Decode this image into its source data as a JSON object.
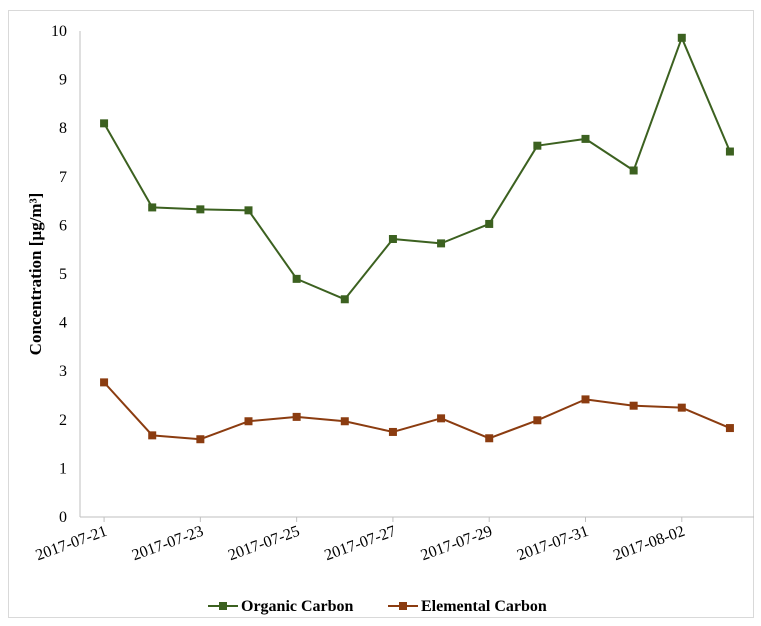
{
  "chart_data": {
    "type": "line",
    "ylabel": "Concentration  [µg/m³]",
    "xlabel": "",
    "ylim": [
      0,
      10
    ],
    "yticks": [
      "0",
      "1",
      "2",
      "3",
      "4",
      "5",
      "6",
      "7",
      "8",
      "9",
      "10"
    ],
    "xtick_labels": [
      "2017-07-21",
      "2017-07-23",
      "2017-07-25",
      "2017-07-27",
      "2017-07-29",
      "2017-07-31",
      "2017-08-02"
    ],
    "x": [
      "2017-07-21",
      "2017-07-22",
      "2017-07-23",
      "2017-07-24",
      "2017-07-25",
      "2017-07-26",
      "2017-07-27",
      "2017-07-28",
      "2017-07-29",
      "2017-07-30",
      "2017-07-31",
      "2017-08-01",
      "2017-08-02",
      "2017-08-03"
    ],
    "series": [
      {
        "name": "Organic Carbon",
        "color": "#3c6120",
        "values": [
          8.1,
          6.37,
          6.33,
          6.31,
          4.9,
          4.48,
          5.72,
          5.63,
          6.03,
          7.64,
          7.78,
          7.13,
          9.86,
          7.52
        ]
      },
      {
        "name": "Elemental Carbon",
        "color": "#8b3c10",
        "values": [
          2.77,
          1.68,
          1.6,
          1.97,
          2.06,
          1.97,
          1.75,
          2.03,
          1.62,
          1.99,
          2.42,
          2.29,
          2.25,
          1.83
        ]
      }
    ],
    "grid": false,
    "legend_position": "bottom"
  }
}
